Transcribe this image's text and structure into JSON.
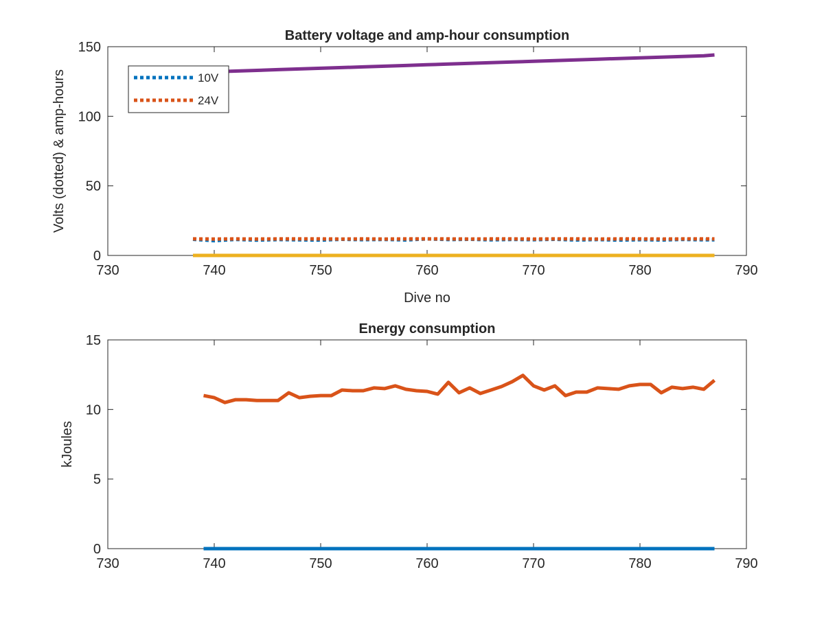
{
  "chart_data": [
    {
      "type": "line",
      "title": "Battery voltage and amp-hour consumption",
      "xlabel": "Dive no",
      "ylabel": "Volts (dotted) & amp-hours",
      "xlim": [
        730,
        790
      ],
      "ylim": [
        0,
        150
      ],
      "xticks": [
        730,
        740,
        750,
        760,
        770,
        780,
        790
      ],
      "yticks": [
        0,
        50,
        100,
        150
      ],
      "grid": false,
      "legend_position": "top-left",
      "x": [
        738,
        740,
        742,
        744,
        746,
        748,
        750,
        752,
        754,
        756,
        758,
        760,
        762,
        764,
        766,
        768,
        770,
        772,
        774,
        776,
        778,
        780,
        782,
        784,
        786,
        787
      ],
      "series": [
        {
          "name": "10V",
          "style": "dotted",
          "color": "#0072BD",
          "values": [
            11.6,
            10.6,
            11.5,
            11.0,
            11.4,
            11.2,
            11.0,
            11.6,
            11.3,
            11.5,
            11.1,
            11.9,
            11.4,
            11.6,
            11.2,
            11.5,
            11.3,
            11.6,
            11.1,
            11.4,
            11.0,
            11.3,
            11.1,
            11.5,
            11.2,
            11.2
          ]
        },
        {
          "name": "24V",
          "style": "dotted",
          "color": "#D95319",
          "values": [
            11.9,
            11.8,
            11.9,
            11.8,
            11.9,
            11.9,
            11.9,
            11.8,
            11.9,
            11.8,
            11.9,
            11.9,
            11.9,
            11.8,
            11.9,
            11.9,
            11.8,
            11.9,
            11.9,
            11.8,
            11.9,
            11.9,
            11.8,
            11.9,
            11.9,
            11.9
          ]
        },
        {
          "style": "solid",
          "color": "#EDB120",
          "values": [
            0,
            0,
            0,
            0,
            0,
            0,
            0,
            0,
            0,
            0,
            0,
            0,
            0,
            0,
            0,
            0,
            0,
            0,
            0,
            0,
            0,
            0,
            0,
            0,
            0,
            0
          ]
        },
        {
          "style": "solid",
          "color": "#7E2F8E",
          "values": [
            131.4,
            132.0,
            132.5,
            133.0,
            133.5,
            134.0,
            134.5,
            135.0,
            135.5,
            136.0,
            136.5,
            137.0,
            137.5,
            138.0,
            138.5,
            139.0,
            139.5,
            140.0,
            140.5,
            141.0,
            141.5,
            142.0,
            142.5,
            143.0,
            143.5,
            144.1
          ]
        }
      ]
    },
    {
      "type": "line",
      "title": "Energy consumption",
      "xlabel": "",
      "ylabel": "kJoules",
      "xlim": [
        730,
        790
      ],
      "ylim": [
        0,
        15
      ],
      "xticks": [
        730,
        740,
        750,
        760,
        770,
        780,
        790
      ],
      "yticks": [
        0,
        5,
        10,
        15
      ],
      "grid": false,
      "x": [
        739,
        740,
        741,
        742,
        743,
        744,
        745,
        746,
        747,
        748,
        749,
        750,
        751,
        752,
        753,
        754,
        755,
        756,
        757,
        758,
        759,
        760,
        761,
        762,
        763,
        764,
        765,
        766,
        767,
        768,
        769,
        770,
        771,
        772,
        773,
        774,
        775,
        776,
        777,
        778,
        779,
        780,
        781,
        782,
        783,
        784,
        785,
        786,
        787
      ],
      "series": [
        {
          "style": "solid",
          "color": "#0072BD",
          "values": [
            0,
            0,
            0,
            0,
            0,
            0,
            0,
            0,
            0,
            0,
            0,
            0,
            0,
            0,
            0,
            0,
            0,
            0,
            0,
            0,
            0,
            0,
            0,
            0,
            0,
            0,
            0,
            0,
            0,
            0,
            0,
            0,
            0,
            0,
            0,
            0,
            0,
            0,
            0,
            0,
            0,
            0,
            0,
            0,
            0,
            0,
            0,
            0,
            0
          ]
        },
        {
          "style": "solid",
          "color": "#D95319",
          "values": [
            11.0,
            10.85,
            10.5,
            10.7,
            10.7,
            10.65,
            10.65,
            10.65,
            11.2,
            10.85,
            10.95,
            11.0,
            11.0,
            11.4,
            11.35,
            11.35,
            11.55,
            11.5,
            11.7,
            11.45,
            11.35,
            11.3,
            11.1,
            11.95,
            11.2,
            11.55,
            11.15,
            11.4,
            11.65,
            12.0,
            12.45,
            11.7,
            11.4,
            11.7,
            11.0,
            11.25,
            11.25,
            11.55,
            11.5,
            11.45,
            11.7,
            11.8,
            11.8,
            11.2,
            11.6,
            11.5,
            11.6,
            11.45,
            12.1
          ]
        }
      ]
    }
  ]
}
